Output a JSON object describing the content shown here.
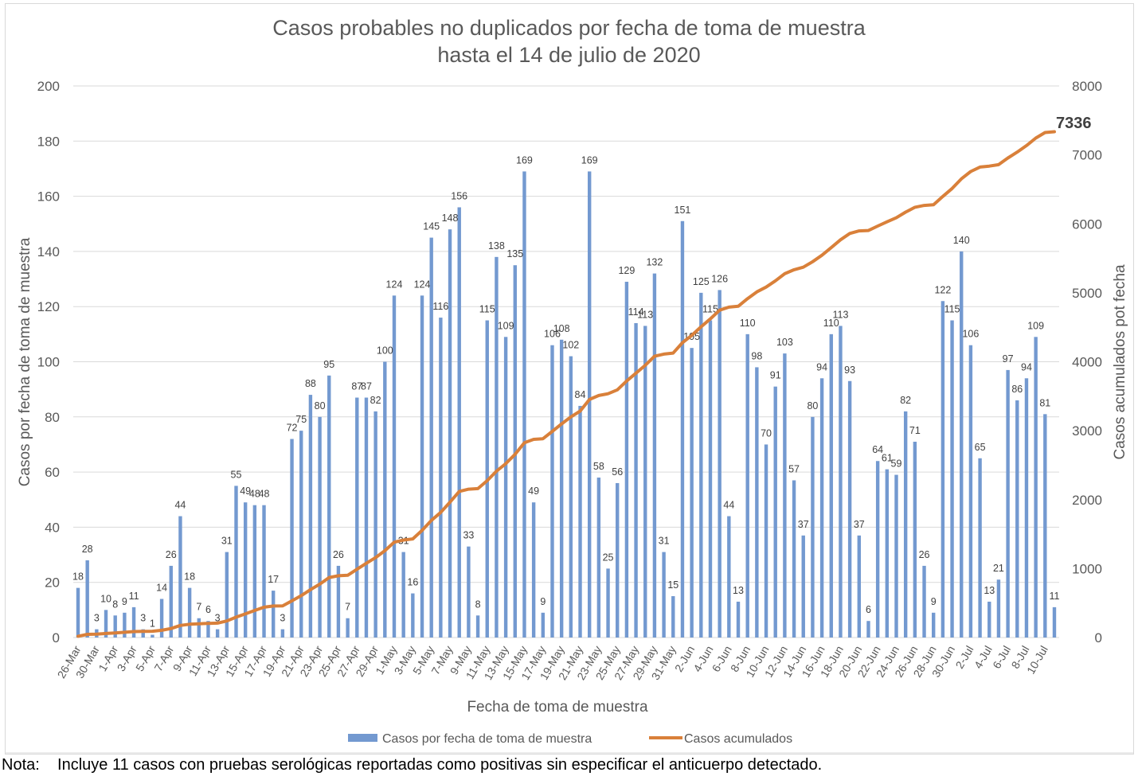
{
  "chart_data": {
    "type": "bar+line",
    "title": "Casos probables no duplicados por fecha de toma de muestra",
    "subtitle": "hasta el 14 de julio de 2020",
    "xlabel": "Fecha de toma de muestra",
    "ylabel": "Casos por fecha de toma de muestra",
    "y2label": "Casos acumulados pot fecha",
    "ylim": [
      0,
      200
    ],
    "y2lim": [
      0,
      8000
    ],
    "yticks": [
      0,
      20,
      40,
      60,
      80,
      100,
      120,
      140,
      160,
      180,
      200
    ],
    "y2ticks": [
      0,
      1000,
      2000,
      3000,
      4000,
      5000,
      6000,
      7000,
      8000
    ],
    "grid": true,
    "legend_position": "bottom",
    "colors": {
      "bars": "#7399d0",
      "line": "#d9803a"
    },
    "categories": [
      "26-Mar",
      "29-Mar",
      "30-Mar",
      "31-Mar",
      "1-Apr",
      "2-Apr",
      "3-Apr",
      "4-Apr",
      "5-Apr",
      "6-Apr",
      "7-Apr",
      "8-Apr",
      "9-Apr",
      "10-Apr",
      "11-Apr",
      "12-Apr",
      "13-Apr",
      "14-Apr",
      "15-Apr",
      "16-Apr",
      "17-Apr",
      "18-Apr",
      "19-Apr",
      "20-Apr",
      "21-Apr",
      "22-Apr",
      "23-Apr",
      "24-Apr",
      "25-Apr",
      "26-Apr",
      "27-Apr",
      "28-Apr",
      "29-Apr",
      "30-Apr",
      "1-May",
      "2-May",
      "3-May",
      "4-May",
      "5-May",
      "6-May",
      "7-May",
      "8-May",
      "9-May",
      "10-May",
      "11-May",
      "12-May",
      "13-May",
      "14-May",
      "15-May",
      "16-May",
      "17-May",
      "18-May",
      "19-May",
      "20-May",
      "21-May",
      "22-May",
      "23-May",
      "24-May",
      "25-May",
      "26-May",
      "27-May",
      "28-May",
      "29-May",
      "30-May",
      "31-May",
      "1-Jun",
      "2-Jun",
      "3-Jun",
      "4-Jun",
      "5-Jun",
      "6-Jun",
      "7-Jun",
      "8-Jun",
      "9-Jun",
      "10-Jun",
      "11-Jun",
      "12-Jun",
      "13-Jun",
      "14-Jun",
      "15-Jun",
      "16-Jun",
      "17-Jun",
      "18-Jun",
      "19-Jun",
      "20-Jun",
      "21-Jun",
      "22-Jun",
      "23-Jun",
      "24-Jun",
      "25-Jun",
      "26-Jun",
      "27-Jun",
      "28-Jun",
      "29-Jun",
      "30-Jun",
      "1-Jul",
      "2-Jul",
      "3-Jul",
      "4-Jul",
      "5-Jul",
      "6-Jul",
      "7-Jul",
      "8-Jul",
      "9-Jul",
      "10-Jul",
      "11-Jul"
    ],
    "tick_labels": [
      "26-Mar",
      "30-Mar",
      "1-Apr",
      "3-Apr",
      "5-Apr",
      "7-Apr",
      "9-Apr",
      "11-Apr",
      "13-Apr",
      "15-Apr",
      "17-Apr",
      "19-Apr",
      "21-Apr",
      "23-Apr",
      "25-Apr",
      "27-Apr",
      "29-Apr",
      "1-May",
      "3-May",
      "5-May",
      "7-May",
      "9-May",
      "11-May",
      "13-May",
      "15-May",
      "17-May",
      "19-May",
      "21-May",
      "23-May",
      "25-May",
      "27-May",
      "29-May",
      "31-May",
      "2-Jun",
      "4-Jun",
      "6-Jun",
      "8-Jun",
      "10-Jun",
      "12-Jun",
      "14-Jun",
      "16-Jun",
      "18-Jun",
      "20-Jun",
      "22-Jun",
      "24-Jun",
      "26-Jun",
      "28-Jun",
      "30-Jun",
      "2-Jul",
      "4-Jul",
      "6-Jul",
      "8-Jul",
      "10-Jul"
    ],
    "series": [
      {
        "name": "Casos por fecha de toma de muestra",
        "type": "bar",
        "axis": "left",
        "values": [
          18,
          28,
          3,
          10,
          8,
          9,
          11,
          3,
          1,
          14,
          26,
          44,
          18,
          7,
          6,
          3,
          31,
          55,
          49,
          48,
          48,
          17,
          3,
          72,
          75,
          88,
          80,
          95,
          26,
          7,
          87,
          87,
          82,
          100,
          124,
          31,
          16,
          124,
          145,
          116,
          148,
          156,
          33,
          8,
          115,
          138,
          109,
          135,
          169,
          49,
          9,
          106,
          108,
          102,
          84,
          169,
          58,
          25,
          56,
          129,
          114,
          113,
          132,
          31,
          15,
          151,
          105,
          125,
          115,
          126,
          44,
          13,
          110,
          98,
          70,
          91,
          103,
          57,
          37,
          80,
          94,
          110,
          113,
          93,
          37,
          6,
          64,
          61,
          59,
          82,
          71,
          26,
          9,
          122,
          115,
          140,
          106,
          65,
          13,
          21,
          97,
          86,
          94,
          109,
          81,
          11
        ]
      },
      {
        "name": "Casos acumulados",
        "type": "line",
        "axis": "right",
        "cumulative_of": 0,
        "final_value": 7336
      }
    ],
    "final_label": "7336"
  },
  "note": {
    "label": "Nota:",
    "text": "Incluye 11 casos con pruebas serológicas reportadas como positivas sin especificar el anticuerpo detectado."
  }
}
